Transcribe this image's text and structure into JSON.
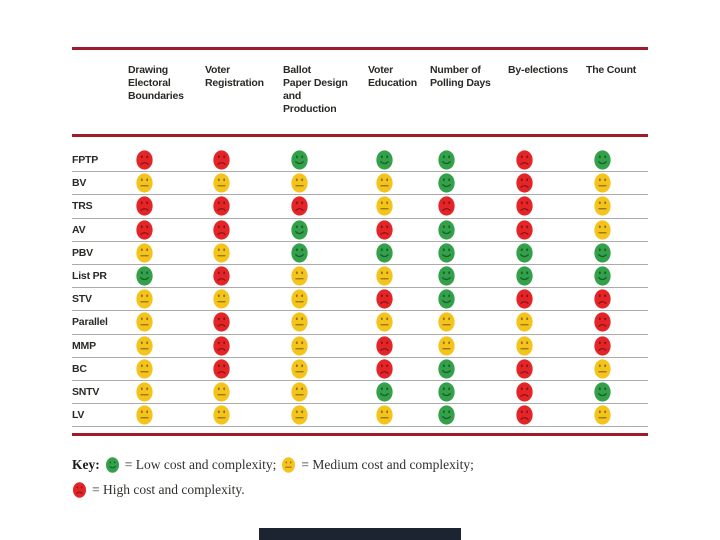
{
  "chart_data": {
    "type": "table",
    "columns": [
      "Drawing Electoral Boundaries",
      "Voter Registration",
      "Ballot Paper Design and Production",
      "Voter Education",
      "Number of Polling Days",
      "By-elections",
      "The Count"
    ],
    "rows": [
      "FPTP",
      "BV",
      "TRS",
      "AV",
      "PBV",
      "List PR",
      "STV",
      "Parallel",
      "MMP",
      "BC",
      "SNTV",
      "LV"
    ],
    "values": [
      [
        "high",
        "high",
        "low",
        "low",
        "low",
        "high",
        "low"
      ],
      [
        "medium",
        "medium",
        "medium",
        "medium",
        "low",
        "high",
        "medium"
      ],
      [
        "high",
        "high",
        "high",
        "medium",
        "high",
        "high",
        "medium"
      ],
      [
        "high",
        "high",
        "low",
        "high",
        "low",
        "high",
        "medium"
      ],
      [
        "medium",
        "medium",
        "low",
        "low",
        "low",
        "low",
        "low"
      ],
      [
        "low",
        "high",
        "medium",
        "medium",
        "low",
        "low",
        "low"
      ],
      [
        "medium",
        "medium",
        "medium",
        "high",
        "low",
        "high",
        "high"
      ],
      [
        "medium",
        "high",
        "medium",
        "medium",
        "medium",
        "medium",
        "high"
      ],
      [
        "medium",
        "high",
        "medium",
        "high",
        "medium",
        "medium",
        "high"
      ],
      [
        "medium",
        "high",
        "medium",
        "high",
        "low",
        "high",
        "medium"
      ],
      [
        "medium",
        "medium",
        "medium",
        "low",
        "low",
        "high",
        "low"
      ],
      [
        "medium",
        "medium",
        "medium",
        "medium",
        "low",
        "high",
        "medium"
      ]
    ],
    "legend": {
      "low": "Low cost and complexity",
      "medium": "Medium cost and complexity",
      "high": "High cost and complexity"
    },
    "legend_position": "bottom",
    "grid": "horizontal-dividers"
  },
  "table": {
    "columns_display": [
      "Drawing\nElectoral\nBoundaries",
      "Voter\nRegistration",
      "Ballot\nPaper Design\nand\nProduction",
      "Voter\nEducation",
      "Number of\nPolling Days",
      "By-elections",
      "The Count"
    ]
  },
  "levels": {
    "low": {
      "name": "Low cost and complexity",
      "icon": "green-smiley-face",
      "color": "#33a04a",
      "features": "#1c5f2e",
      "mouth": "smile"
    },
    "medium": {
      "name": "Medium cost and complexity",
      "icon": "yellow-neutral-face",
      "color": "#f5c41c",
      "features": "#8d7214",
      "mouth": "neutral"
    },
    "high": {
      "name": "High cost and complexity",
      "icon": "red-frown-face",
      "color": "#e42528",
      "features": "#8c1218",
      "mouth": "frown"
    }
  },
  "key": {
    "label": "Key:",
    "entries": [
      {
        "level": "low",
        "text": "= Low cost and complexity;"
      },
      {
        "level": "medium",
        "text": "= Medium cost and complexity;"
      },
      {
        "level": "high",
        "text": "= High cost and complexity."
      }
    ]
  },
  "colors": {
    "rule": "#9e1c2b",
    "row_divider": "#acacac",
    "text": "#2b2926",
    "bottom_bar": "#1b2430"
  }
}
